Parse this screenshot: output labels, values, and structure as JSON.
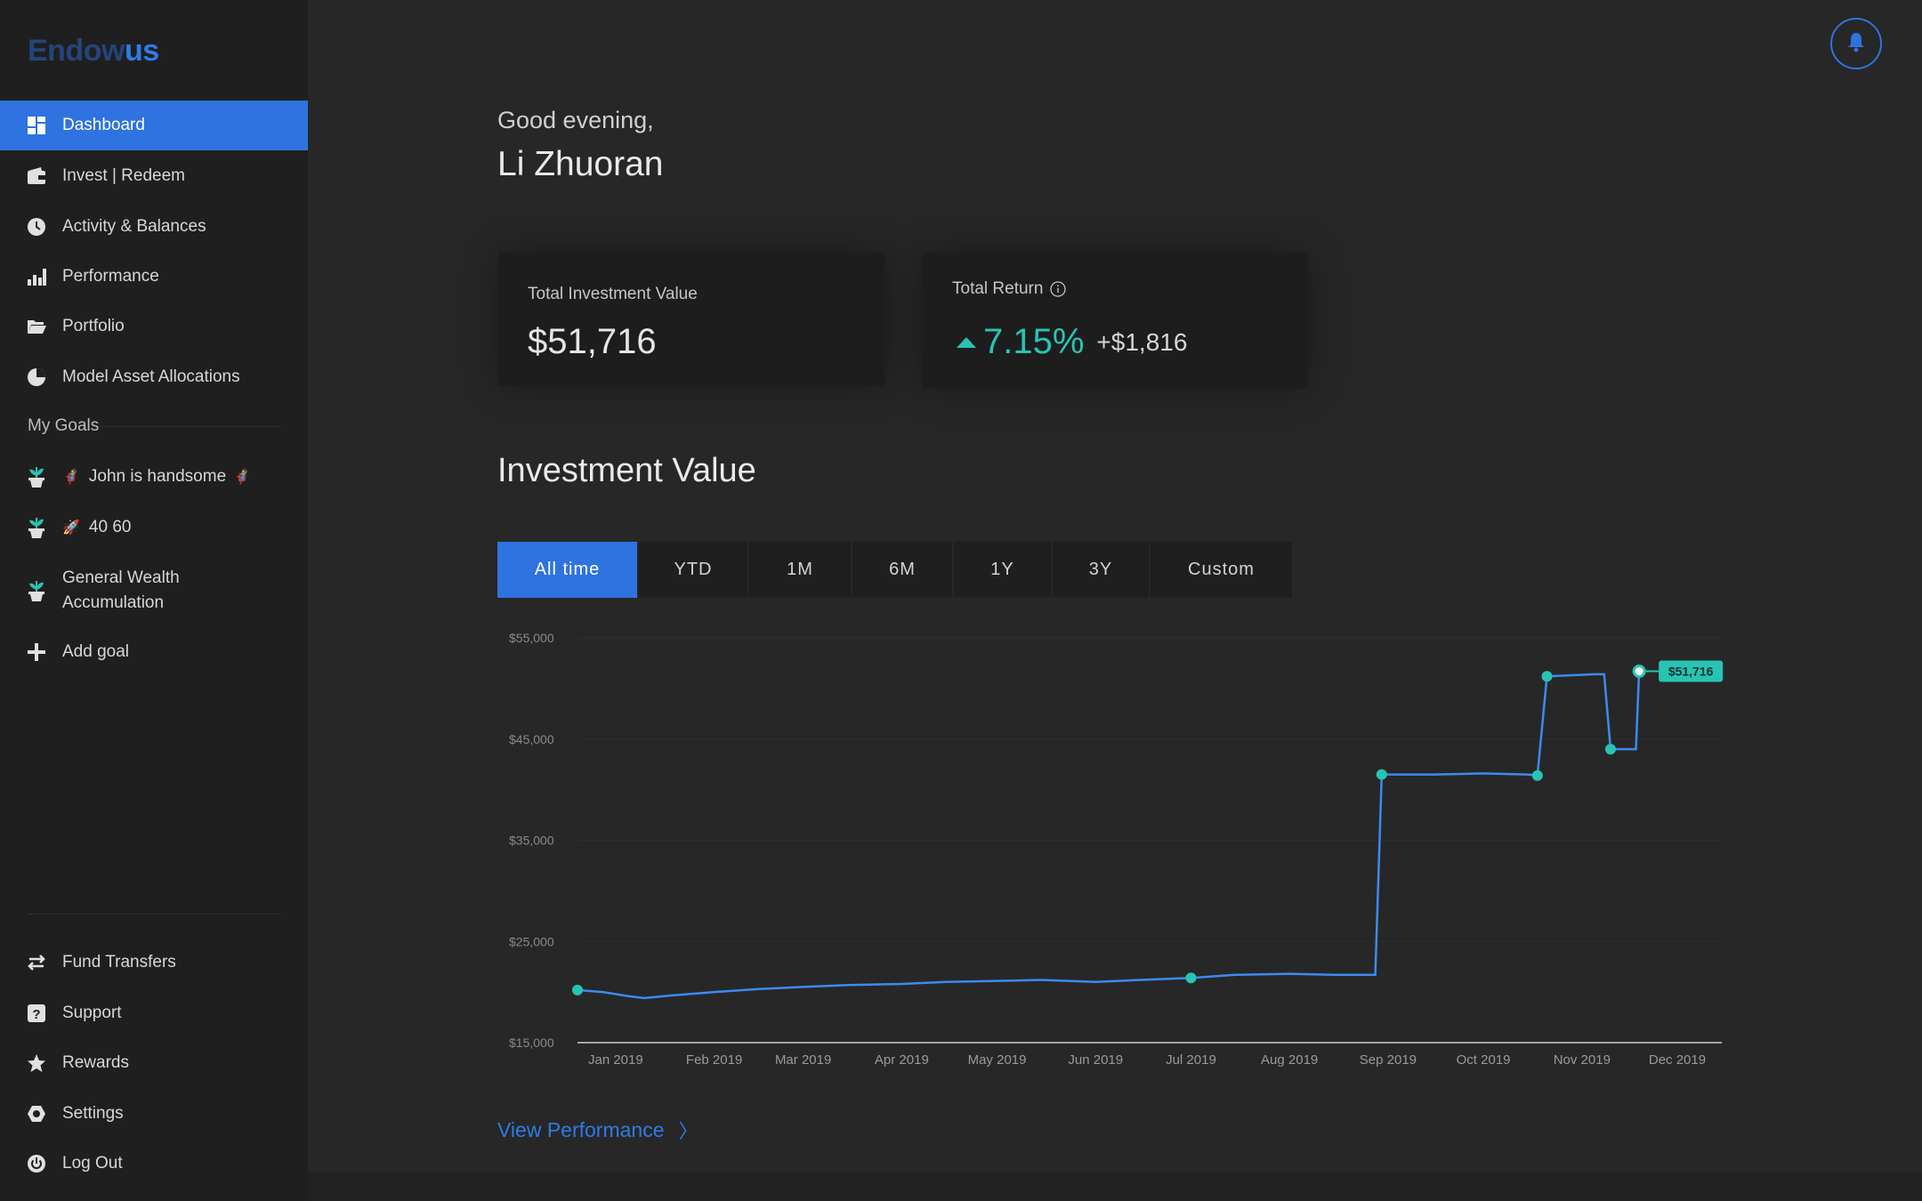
{
  "brand": {
    "part1": "Endow",
    "part2": "us"
  },
  "nav": {
    "dashboard": "Dashboard",
    "invest": "Invest | Redeem",
    "activity": "Activity & Balances",
    "performance": "Performance",
    "portfolio": "Portfolio",
    "model": "Model Asset Allocations"
  },
  "goals": {
    "section": "My Goals",
    "goal1": {
      "emoji": "🦸",
      "label": "John is handsome",
      "emoji_after": "🦸"
    },
    "goal2": {
      "emoji": "🚀",
      "label": "40 60"
    },
    "goal3": {
      "label_line1": "General Wealth",
      "label_line2": "Accumulation"
    },
    "add": "Add goal"
  },
  "bottom_nav": {
    "transfers": "Fund Transfers",
    "support": "Support",
    "rewards": "Rewards",
    "settings": "Settings",
    "logout": "Log Out"
  },
  "greeting": "Good evening,",
  "user_name": "Li Zhuoran",
  "summary": {
    "investment_title": "Total Investment Value",
    "investment_value": "$51,716",
    "return_title": "Total Return",
    "return_pct": "7.15%",
    "return_abs": "+$1,816"
  },
  "section_title": "Investment Value",
  "tabs": [
    "All time",
    "YTD",
    "1M",
    "6M",
    "1Y",
    "3Y",
    "Custom"
  ],
  "view_performance": "View Performance",
  "colors": {
    "accent": "#2f73e0",
    "teal": "#27c4b4",
    "line": "#3d8bef"
  },
  "chart_data": {
    "type": "line",
    "y_ticks": [
      "$55,000",
      "$45,000",
      "$35,000",
      "$25,000",
      "$15,000"
    ],
    "ylim": [
      15000,
      55000
    ],
    "x_ticks": [
      "Jan 2019",
      "Feb 2019",
      "Mar 2019",
      "Apr 2019",
      "May 2019",
      "Jun 2019",
      "Jul 2019",
      "Aug 2019",
      "Sep 2019",
      "Oct 2019",
      "Nov 2019",
      "Dec 2019"
    ],
    "end_label": "$51,716",
    "series": [
      {
        "points": [
          [
            "2018-12-20",
            20200
          ],
          [
            "2018-12-28",
            20000
          ],
          [
            "2019-01-05",
            19600
          ],
          [
            "2019-01-10",
            19400
          ],
          [
            "2019-01-20",
            19700
          ],
          [
            "2019-02-01",
            20000
          ],
          [
            "2019-02-15",
            20300
          ],
          [
            "2019-03-01",
            20500
          ],
          [
            "2019-03-15",
            20700
          ],
          [
            "2019-04-01",
            20800
          ],
          [
            "2019-04-15",
            21000
          ],
          [
            "2019-05-01",
            21100
          ],
          [
            "2019-05-15",
            21200
          ],
          [
            "2019-06-01",
            21000
          ],
          [
            "2019-06-15",
            21200
          ],
          [
            "2019-07-01",
            21400
          ],
          [
            "2019-07-15",
            21700
          ],
          [
            "2019-08-01",
            21800
          ],
          [
            "2019-08-15",
            21700
          ],
          [
            "2019-08-28",
            21700
          ],
          [
            "2019-08-30",
            41500
          ],
          [
            "2019-09-15",
            41500
          ],
          [
            "2019-10-01",
            41600
          ],
          [
            "2019-10-15",
            41500
          ],
          [
            "2019-10-18",
            41400
          ],
          [
            "2019-10-21",
            51200
          ],
          [
            "2019-11-05",
            51400
          ],
          [
            "2019-11-08",
            51400
          ],
          [
            "2019-11-10",
            44000
          ],
          [
            "2019-11-18",
            44000
          ],
          [
            "2019-11-19",
            51700
          ]
        ],
        "markers": [
          [
            "2018-12-20",
            20200
          ],
          [
            "2019-07-01",
            21400
          ],
          [
            "2019-08-30",
            41500
          ],
          [
            "2019-10-18",
            41400
          ],
          [
            "2019-10-21",
            51200
          ],
          [
            "2019-11-10",
            44000
          ],
          [
            "2019-11-19",
            51700
          ]
        ]
      }
    ]
  }
}
